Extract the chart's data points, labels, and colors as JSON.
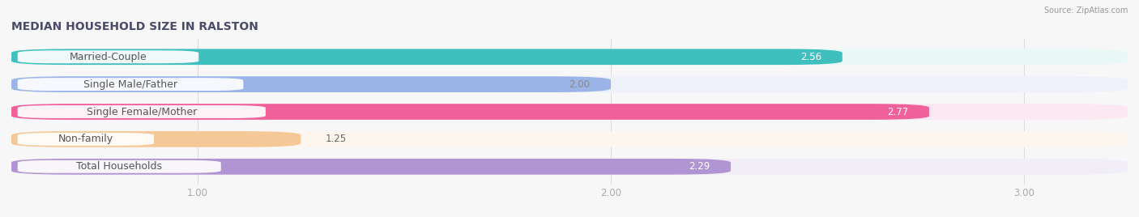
{
  "title": "MEDIAN HOUSEHOLD SIZE IN RALSTON",
  "source": "Source: ZipAtlas.com",
  "categories": [
    "Married-Couple",
    "Single Male/Father",
    "Single Female/Mother",
    "Non-family",
    "Total Households"
  ],
  "values": [
    2.56,
    2.0,
    2.77,
    1.25,
    2.29
  ],
  "bar_colors": [
    "#40bfbf",
    "#9ab4e8",
    "#f0609a",
    "#f5c898",
    "#b094d4"
  ],
  "bar_bg_colors": [
    "#eaf7f7",
    "#eef1fa",
    "#fce8f2",
    "#fdf6ee",
    "#f2eef8"
  ],
  "value_text_colors": [
    "white",
    "#888888",
    "white",
    "#888888",
    "white"
  ],
  "xlim_start": 0.55,
  "xlim_end": 3.25,
  "xstart": 0.55,
  "xticks": [
    1.0,
    2.0,
    3.0
  ],
  "xtick_labels": [
    "1.00",
    "2.00",
    "3.00"
  ],
  "title_fontsize": 10,
  "label_fontsize": 9,
  "value_fontsize": 8.5,
  "bar_height": 0.58,
  "background_color": "#f7f7f7",
  "title_color": "#4a4a6a",
  "source_color": "#999999",
  "grid_color": "#dddddd",
  "label_bg_color": "#ffffff",
  "label_text_color": "#555555"
}
